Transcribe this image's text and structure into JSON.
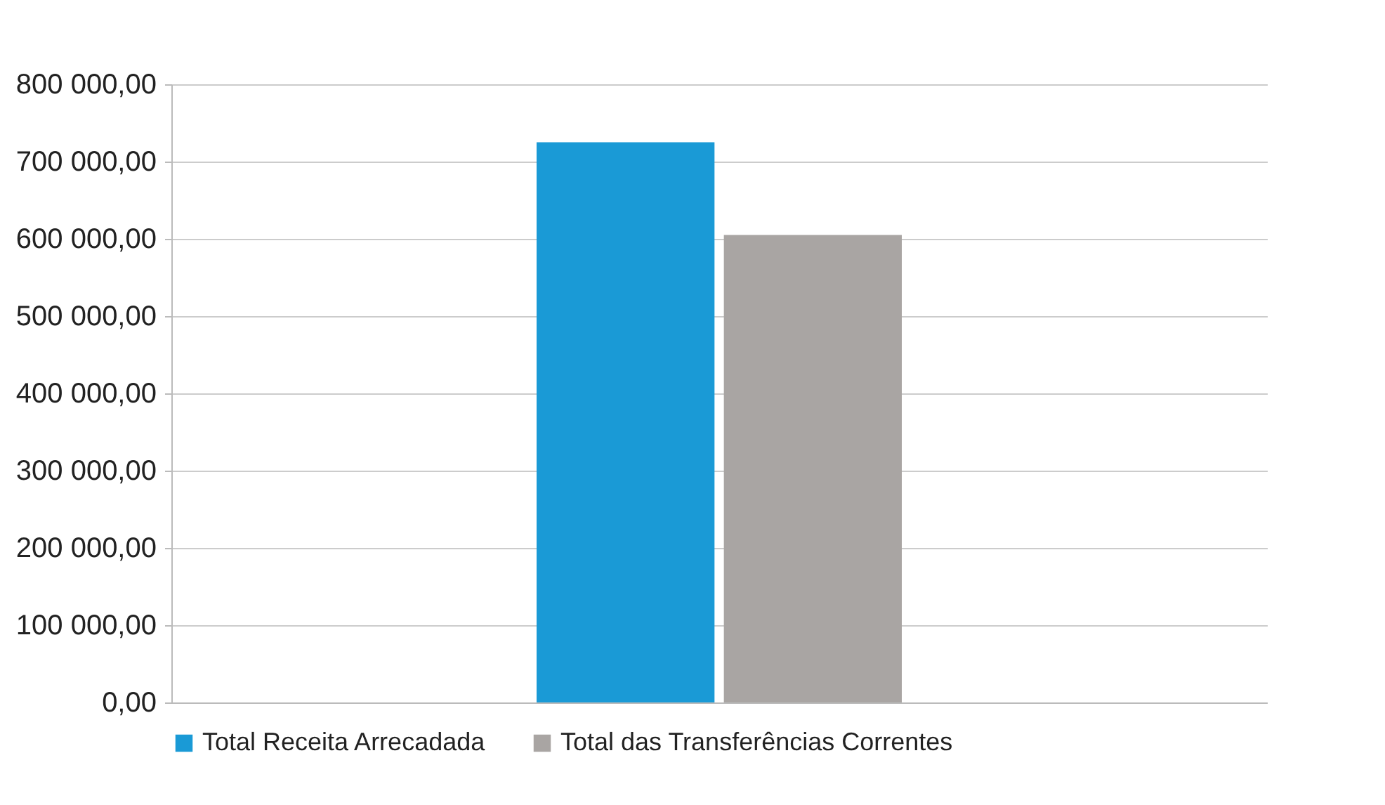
{
  "chart_data": {
    "type": "bar",
    "categories": [
      null
    ],
    "series": [
      {
        "name": "Total Receita Arrecadada",
        "color": "#1a9ad6",
        "values": [
          725000
        ]
      },
      {
        "name": "Total das Transferências Correntes",
        "color": "#a9a5a3",
        "values": [
          605000
        ]
      }
    ],
    "ylim": [
      0,
      800000
    ],
    "yticks": [
      {
        "value": 0,
        "label": "0,00"
      },
      {
        "value": 100000,
        "label": "100 000,00"
      },
      {
        "value": 200000,
        "label": "200 000,00"
      },
      {
        "value": 300000,
        "label": "300 000,00"
      },
      {
        "value": 400000,
        "label": "400 000,00"
      },
      {
        "value": 500000,
        "label": "500 000,00"
      },
      {
        "value": 600000,
        "label": "600 000,00"
      },
      {
        "value": 700000,
        "label": "700 000,00"
      },
      {
        "value": 800000,
        "label": "800 000,00"
      }
    ],
    "grid": "y",
    "legend": "bottom"
  }
}
